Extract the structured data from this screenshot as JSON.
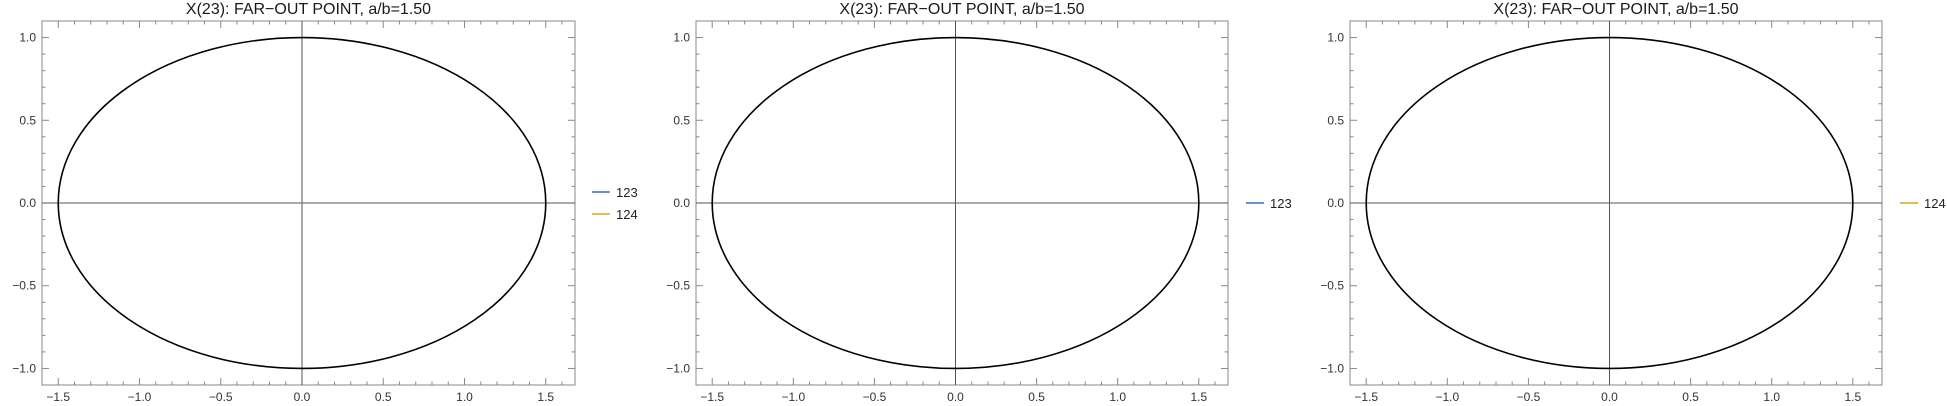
{
  "chart_data": [
    {
      "type": "line",
      "title": "X(23): FAR−OUT POINT, a/b=1.50",
      "xlim": [
        -1.6,
        1.68
      ],
      "ylim": [
        -1.1,
        1.1
      ],
      "xticks": [
        "-1.5",
        "-1.0",
        "-0.5",
        "0.0",
        "0.5",
        "1.0",
        "1.5"
      ],
      "xtick_values": [
        -1.5,
        -1.0,
        -0.5,
        0.0,
        0.5,
        1.0,
        1.5
      ],
      "yticks": [
        "-1.0",
        "-0.5",
        "0.0",
        "0.5",
        "1.0"
      ],
      "ytick_values": [
        -1.0,
        -0.5,
        0.0,
        0.5,
        1.0
      ],
      "ellipse": {
        "a": 1.5,
        "b": 1.0,
        "color": "#000000"
      },
      "axes_color": "#555555",
      "legend": [
        {
          "label": "123",
          "color": "#3a6db5"
        },
        {
          "label": "124",
          "color": "#e0a020"
        }
      ],
      "legend_placement": "right"
    },
    {
      "type": "line",
      "title": "X(23): FAR−OUT POINT, a/b=1.50",
      "xlim": [
        -1.6,
        1.68
      ],
      "ylim": [
        -1.1,
        1.1
      ],
      "xticks": [
        "-1.5",
        "-1.0",
        "-0.5",
        "0.0",
        "0.5",
        "1.0",
        "1.5"
      ],
      "xtick_values": [
        -1.5,
        -1.0,
        -0.5,
        0.0,
        0.5,
        1.0,
        1.5
      ],
      "yticks": [
        "-1.0",
        "-0.5",
        "0.0",
        "0.5",
        "1.0"
      ],
      "ytick_values": [
        -1.0,
        -0.5,
        0.0,
        0.5,
        1.0
      ],
      "ellipse": {
        "a": 1.5,
        "b": 1.0,
        "color": "#000000"
      },
      "axes_color": "#555555",
      "legend": [
        {
          "label": "123",
          "color": "#3a6db5"
        }
      ],
      "legend_placement": "right"
    },
    {
      "type": "line",
      "title": "X(23): FAR−OUT POINT, a/b=1.50",
      "xlim": [
        -1.6,
        1.68
      ],
      "ylim": [
        -1.1,
        1.1
      ],
      "xticks": [
        "-1.5",
        "-1.0",
        "-0.5",
        "0.0",
        "0.5",
        "1.0",
        "1.5"
      ],
      "xtick_values": [
        -1.5,
        -1.0,
        -0.5,
        0.0,
        0.5,
        1.0,
        1.5
      ],
      "yticks": [
        "-1.0",
        "-0.5",
        "0.0",
        "0.5",
        "1.0"
      ],
      "ytick_values": [
        -1.0,
        -0.5,
        0.0,
        0.5,
        1.0
      ],
      "ellipse": {
        "a": 1.5,
        "b": 1.0,
        "color": "#000000"
      },
      "axes_color": "#555555",
      "legend": [
        {
          "label": "124",
          "color": "#e0a020"
        }
      ],
      "legend_placement": "right"
    }
  ]
}
